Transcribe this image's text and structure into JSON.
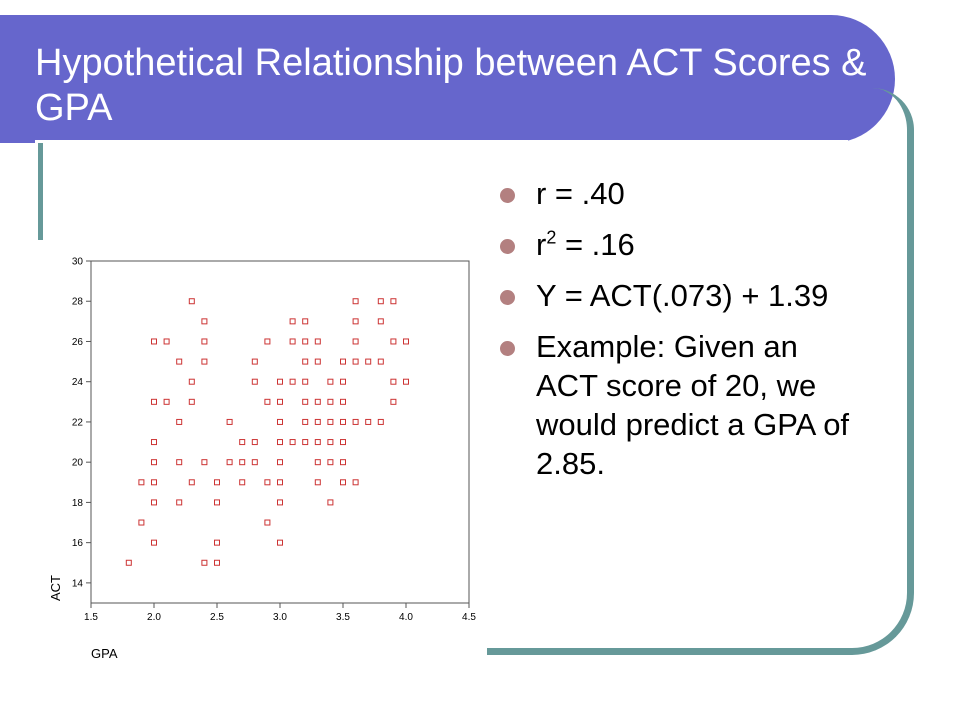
{
  "colors": {
    "title_background": "#6666cc",
    "frame": "#669999",
    "bullet": "#b38080",
    "marker": "#cc3333"
  },
  "slide": {
    "title": "Hypothetical Relationship between ACT Scores & GPA"
  },
  "bullets": [
    {
      "kind": "plain",
      "text": "r  = .40"
    },
    {
      "kind": "superscript",
      "base": "r",
      "sup": "2",
      "rest": " = .16"
    },
    {
      "kind": "plain",
      "text": "Y = ACT(.073) + 1.39"
    },
    {
      "kind": "plain",
      "text": "Example: Given an ACT score of 20, we would predict a GPA of 2.85."
    }
  ],
  "chart_data": {
    "type": "scatter",
    "title": "",
    "xlabel": "GPA",
    "ylabel": "ACT",
    "xlim": [
      1.5,
      4.5
    ],
    "ylim": [
      13,
      30
    ],
    "xticks": [
      "1.5",
      "2.0",
      "2.5",
      "3.0",
      "3.5",
      "4.0",
      "4.5"
    ],
    "yticks": [
      "14",
      "16",
      "18",
      "20",
      "22",
      "24",
      "26",
      "28",
      "30"
    ],
    "grid": false,
    "marker": "hollow-square",
    "points": [
      [
        2.3,
        28
      ],
      [
        3.6,
        28
      ],
      [
        3.8,
        28
      ],
      [
        3.9,
        28
      ],
      [
        2.4,
        27
      ],
      [
        3.1,
        27
      ],
      [
        3.2,
        27
      ],
      [
        3.6,
        27
      ],
      [
        3.8,
        27
      ],
      [
        2.0,
        26
      ],
      [
        2.1,
        26
      ],
      [
        2.4,
        26
      ],
      [
        2.9,
        26
      ],
      [
        3.1,
        26
      ],
      [
        3.2,
        26
      ],
      [
        3.3,
        26
      ],
      [
        3.6,
        26
      ],
      [
        3.9,
        26
      ],
      [
        4.0,
        26
      ],
      [
        2.2,
        25
      ],
      [
        2.4,
        25
      ],
      [
        2.8,
        25
      ],
      [
        3.2,
        25
      ],
      [
        3.3,
        25
      ],
      [
        3.5,
        25
      ],
      [
        3.6,
        25
      ],
      [
        3.7,
        25
      ],
      [
        3.8,
        25
      ],
      [
        2.3,
        24
      ],
      [
        2.8,
        24
      ],
      [
        3.0,
        24
      ],
      [
        3.1,
        24
      ],
      [
        3.2,
        24
      ],
      [
        3.4,
        24
      ],
      [
        3.5,
        24
      ],
      [
        3.9,
        24
      ],
      [
        4.0,
        24
      ],
      [
        2.0,
        23
      ],
      [
        2.1,
        23
      ],
      [
        2.3,
        23
      ],
      [
        2.9,
        23
      ],
      [
        3.0,
        23
      ],
      [
        3.2,
        23
      ],
      [
        3.3,
        23
      ],
      [
        3.4,
        23
      ],
      [
        3.5,
        23
      ],
      [
        3.9,
        23
      ],
      [
        2.2,
        22
      ],
      [
        2.6,
        22
      ],
      [
        3.0,
        22
      ],
      [
        3.2,
        22
      ],
      [
        3.3,
        22
      ],
      [
        3.4,
        22
      ],
      [
        3.5,
        22
      ],
      [
        3.6,
        22
      ],
      [
        3.7,
        22
      ],
      [
        3.8,
        22
      ],
      [
        2.0,
        21
      ],
      [
        2.7,
        21
      ],
      [
        2.8,
        21
      ],
      [
        3.0,
        21
      ],
      [
        3.1,
        21
      ],
      [
        3.2,
        21
      ],
      [
        3.3,
        21
      ],
      [
        3.4,
        21
      ],
      [
        3.5,
        21
      ],
      [
        2.0,
        20
      ],
      [
        2.2,
        20
      ],
      [
        2.4,
        20
      ],
      [
        2.6,
        20
      ],
      [
        2.7,
        20
      ],
      [
        2.8,
        20
      ],
      [
        3.0,
        20
      ],
      [
        3.3,
        20
      ],
      [
        3.4,
        20
      ],
      [
        3.5,
        20
      ],
      [
        1.9,
        19
      ],
      [
        2.0,
        19
      ],
      [
        2.3,
        19
      ],
      [
        2.5,
        19
      ],
      [
        2.7,
        19
      ],
      [
        2.9,
        19
      ],
      [
        3.0,
        19
      ],
      [
        3.3,
        19
      ],
      [
        3.5,
        19
      ],
      [
        3.6,
        19
      ],
      [
        2.0,
        18
      ],
      [
        2.2,
        18
      ],
      [
        2.5,
        18
      ],
      [
        3.0,
        18
      ],
      [
        3.4,
        18
      ],
      [
        1.9,
        17
      ],
      [
        2.9,
        17
      ],
      [
        2.0,
        16
      ],
      [
        2.5,
        16
      ],
      [
        3.0,
        16
      ],
      [
        1.8,
        15
      ],
      [
        2.4,
        15
      ],
      [
        2.5,
        15
      ]
    ]
  }
}
